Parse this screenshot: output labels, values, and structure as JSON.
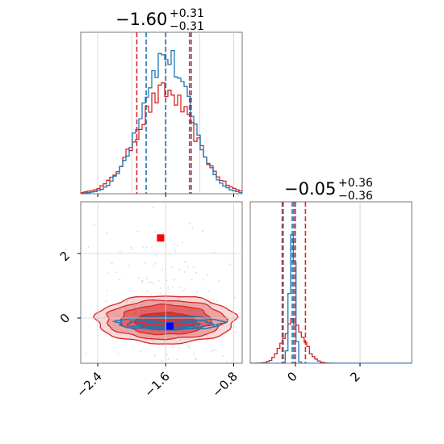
{
  "colors": {
    "blue": "#1f77b4",
    "red": "#d62728",
    "grid": "#d0d0d0",
    "blue_marker": "#0000ff",
    "red_marker": "#ff0000"
  },
  "titles": {
    "param1": {
      "value": "−1.60",
      "upper": "+0.31",
      "lower": "−0.31"
    },
    "param2": {
      "value": "−0.05",
      "upper": "+0.36",
      "lower": "−0.36"
    }
  },
  "chart_data": {
    "type": "corner",
    "parameters": 2,
    "grid": true,
    "series": [
      {
        "color": "blue"
      },
      {
        "color": "red"
      }
    ],
    "param1_axis": {
      "range": [
        -2.6,
        -0.7
      ],
      "ticks": [
        -2.4,
        -1.6,
        -0.8
      ],
      "tick_labels": [
        "−2.4",
        "−1.6",
        "−0.8"
      ]
    },
    "param2_axis": {
      "range": [
        -1.4,
        3.6
      ],
      "ticks": [
        0,
        2
      ],
      "tick_labels": [
        "0",
        "2"
      ]
    },
    "marginal_param1": {
      "blue": {
        "center": -1.6,
        "sigma": 0.29,
        "peak": 1.0,
        "quantiles": [
          -1.83,
          -1.6,
          -1.32
        ]
      },
      "red": {
        "center": -1.6,
        "sigma": 0.33,
        "peak": 0.74,
        "quantiles": [
          -1.94,
          -1.6,
          -1.3
        ]
      }
    },
    "marginal_param2": {
      "blue": {
        "center": -0.1,
        "sigma": 0.08,
        "peak": 1.0,
        "quantiles": [
          -0.38,
          -0.1,
          0.0
        ]
      },
      "red": {
        "center": -0.05,
        "sigma": 0.32,
        "peak": 0.29,
        "quantiles": [
          -0.41,
          -0.05,
          0.31
        ]
      }
    },
    "joint": {
      "red_contours": [
        {
          "cx": -1.6,
          "cy": -0.05,
          "rx": 0.82,
          "ry": 0.74
        },
        {
          "cx": -1.6,
          "cy": -0.05,
          "rx": 0.7,
          "ry": 0.6
        },
        {
          "cx": -1.6,
          "cy": -0.05,
          "rx": 0.53,
          "ry": 0.46
        },
        {
          "cx": -1.6,
          "cy": -0.1,
          "rx": 0.36,
          "ry": 0.27
        }
      ],
      "blue_contours": [
        {
          "cx": -1.55,
          "cy": -0.15,
          "rx": 0.62,
          "ry": 0.21
        },
        {
          "cx": -1.55,
          "cy": -0.18,
          "rx": 0.5,
          "ry": 0.14
        },
        {
          "cx": -1.55,
          "cy": -0.2,
          "rx": 0.35,
          "ry": 0.08
        }
      ],
      "blue_marker": [
        -1.55,
        -0.25
      ],
      "red_marker": [
        -1.66,
        2.48
      ]
    }
  }
}
